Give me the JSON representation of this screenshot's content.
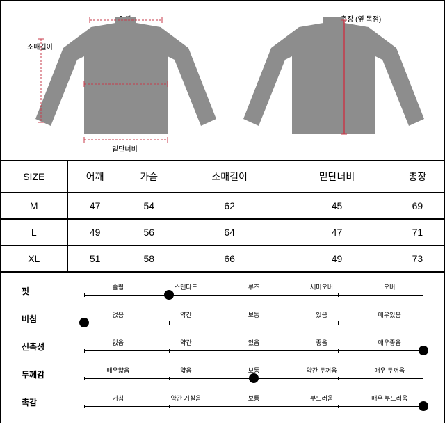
{
  "diagram": {
    "garment_color": "#8d8d8d",
    "measure_color": "#c73a4a",
    "front": {
      "labels": {
        "shoulder": "어깨",
        "sleeve": "소매길이",
        "chest": "가슴",
        "hem": "밑단너비"
      }
    },
    "back": {
      "labels": {
        "length": "총장 (옆 목점)"
      }
    }
  },
  "size_table": {
    "header": [
      "SIZE",
      "어깨",
      "가슴",
      "소매길이",
      "밑단너비",
      "총장"
    ],
    "rows": [
      [
        "M",
        "47",
        "54",
        "62",
        "45",
        "69"
      ],
      [
        "L",
        "49",
        "56",
        "64",
        "47",
        "71"
      ],
      [
        "XL",
        "51",
        "58",
        "66",
        "49",
        "73"
      ]
    ]
  },
  "attributes": [
    {
      "label": "핏",
      "options": [
        "슬림",
        "스탠다드",
        "루즈",
        "세미오버",
        "오버"
      ],
      "selected": 1
    },
    {
      "label": "비침",
      "options": [
        "없음",
        "약간",
        "보통",
        "있음",
        "매우있음"
      ],
      "selected": 0
    },
    {
      "label": "신축성",
      "options": [
        "없음",
        "약간",
        "있음",
        "좋음",
        "매우좋음"
      ],
      "selected": 4
    },
    {
      "label": "두께감",
      "options": [
        "매우얇음",
        "얇음",
        "보통",
        "약간 두꺼움",
        "매우 두꺼움"
      ],
      "selected": 2
    },
    {
      "label": "촉감",
      "options": [
        "거침",
        "약간 거칠음",
        "보통",
        "부드러움",
        "매우 부드러움"
      ],
      "selected": 4
    }
  ],
  "colors": {
    "border": "#000",
    "bg": "#fff",
    "dot": "#000"
  }
}
